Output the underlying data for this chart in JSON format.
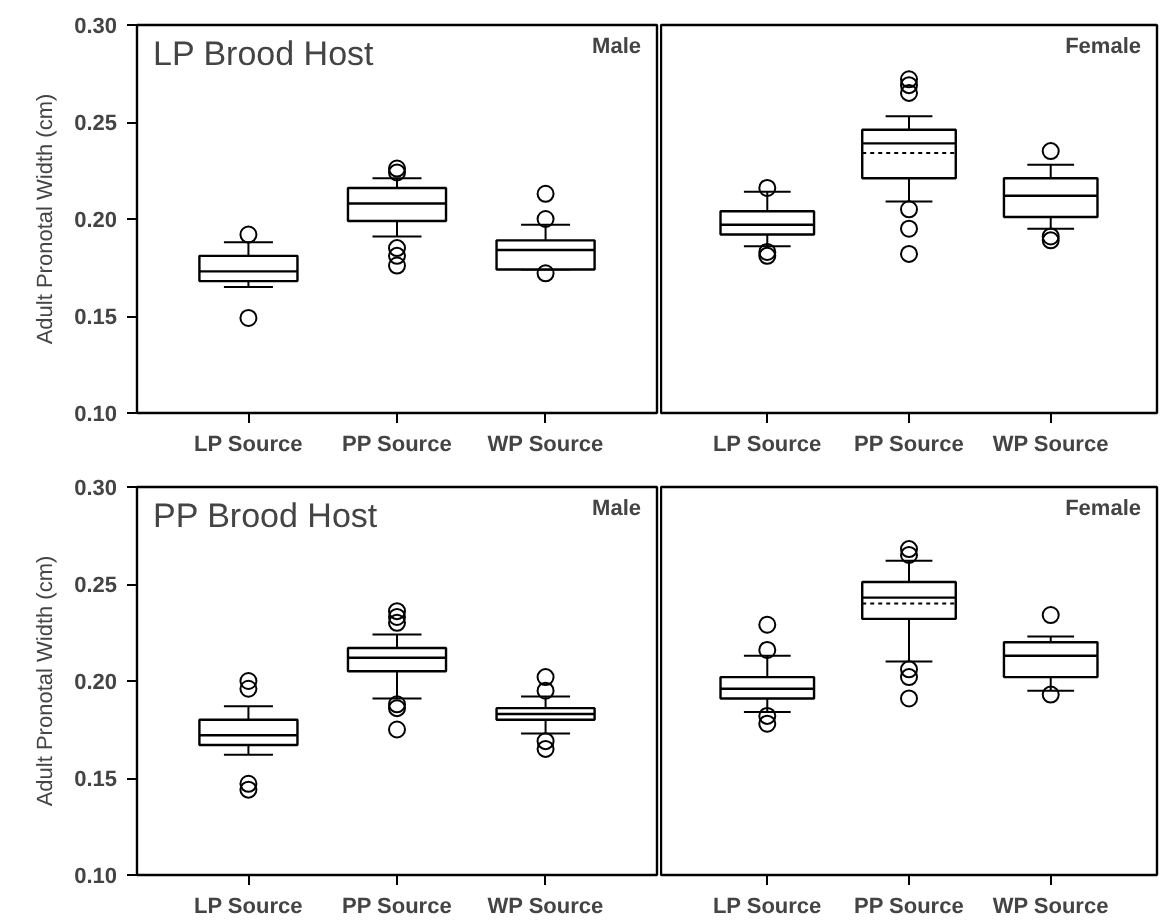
{
  "chart_data": [
    {
      "type": "box",
      "title": "LP Brood Host",
      "annotations": [
        "Male"
      ],
      "ylabel": "Adult Pronotal Width (cm)",
      "categories": [
        "LP Source",
        "PP Source",
        "WP Source"
      ],
      "ylim": [
        0.1,
        0.3
      ],
      "yticks": [
        {
          "value": 0.1,
          "label": "0.10"
        },
        {
          "value": 0.15,
          "label": "0.15"
        },
        {
          "value": 0.2,
          "label": "0.20"
        },
        {
          "value": 0.25,
          "label": "0.25"
        },
        {
          "value": 0.3,
          "label": "0.30"
        }
      ],
      "grid": false,
      "boxes": [
        {
          "low": 0.165,
          "q1": 0.168,
          "median": 0.173,
          "q3": 0.181,
          "high": 0.188,
          "outliers": [
            0.192,
            0.149
          ]
        },
        {
          "low": 0.191,
          "q1": 0.199,
          "median": 0.208,
          "q3": 0.216,
          "high": 0.221,
          "outliers": [
            0.224,
            0.226,
            0.185,
            0.181,
            0.176
          ]
        },
        {
          "low": 0.174,
          "q1": 0.174,
          "median": 0.184,
          "q3": 0.189,
          "high": 0.197,
          "outliers": [
            0.2,
            0.213,
            0.172
          ]
        }
      ]
    },
    {
      "type": "box",
      "annotations": [
        "Female"
      ],
      "categories": [
        "LP Source",
        "PP Source",
        "WP Source"
      ],
      "ylim": [
        0.1,
        0.3
      ],
      "grid": false,
      "tick_labels": "x",
      "boxes": [
        {
          "low": 0.186,
          "q1": 0.192,
          "median": 0.197,
          "q3": 0.204,
          "high": 0.214,
          "outliers": [
            0.216,
            0.183,
            0.181
          ]
        },
        {
          "low": 0.209,
          "q1": 0.221,
          "median": 0.239,
          "mean": 0.234,
          "q3": 0.246,
          "high": 0.253,
          "outliers": [
            0.272,
            0.269,
            0.265,
            0.205,
            0.195,
            0.182
          ]
        },
        {
          "low": 0.195,
          "q1": 0.201,
          "median": 0.212,
          "q3": 0.221,
          "high": 0.228,
          "outliers": [
            0.235,
            0.191,
            0.189
          ]
        }
      ]
    },
    {
      "type": "box",
      "title": "PP Brood Host",
      "annotations": [
        "Male"
      ],
      "ylabel": "Adult Pronotal Width (cm)",
      "categories": [
        "LP Source",
        "PP Source",
        "WP Source"
      ],
      "ylim": [
        0.1,
        0.3
      ],
      "yticks": [
        {
          "value": 0.1,
          "label": "0.10"
        },
        {
          "value": 0.15,
          "label": "0.15"
        },
        {
          "value": 0.2,
          "label": "0.20"
        },
        {
          "value": 0.25,
          "label": "0.25"
        },
        {
          "value": 0.3,
          "label": "0.30"
        }
      ],
      "grid": false,
      "boxes": [
        {
          "low": 0.162,
          "q1": 0.167,
          "median": 0.172,
          "q3": 0.18,
          "high": 0.187,
          "outliers": [
            0.2,
            0.196,
            0.147,
            0.144
          ]
        },
        {
          "low": 0.191,
          "q1": 0.205,
          "median": 0.212,
          "q3": 0.217,
          "high": 0.224,
          "outliers": [
            0.236,
            0.233,
            0.23,
            0.188,
            0.186,
            0.175
          ]
        },
        {
          "low": 0.173,
          "q1": 0.18,
          "median": 0.183,
          "q3": 0.186,
          "high": 0.192,
          "outliers": [
            0.202,
            0.195,
            0.169,
            0.165
          ]
        }
      ]
    },
    {
      "type": "box",
      "annotations": [
        "Female"
      ],
      "categories": [
        "LP Source",
        "PP Source",
        "WP Source"
      ],
      "ylim": [
        0.1,
        0.3
      ],
      "grid": false,
      "tick_labels": "x",
      "boxes": [
        {
          "low": 0.184,
          "q1": 0.191,
          "median": 0.196,
          "q3": 0.202,
          "high": 0.213,
          "outliers": [
            0.216,
            0.229,
            0.182,
            0.178
          ]
        },
        {
          "low": 0.21,
          "q1": 0.232,
          "median": 0.243,
          "mean": 0.24,
          "q3": 0.251,
          "high": 0.262,
          "outliers": [
            0.268,
            0.265,
            0.206,
            0.202,
            0.191
          ]
        },
        {
          "low": 0.195,
          "q1": 0.202,
          "median": 0.213,
          "q3": 0.22,
          "high": 0.223,
          "outliers": [
            0.234,
            0.193
          ]
        }
      ]
    }
  ]
}
